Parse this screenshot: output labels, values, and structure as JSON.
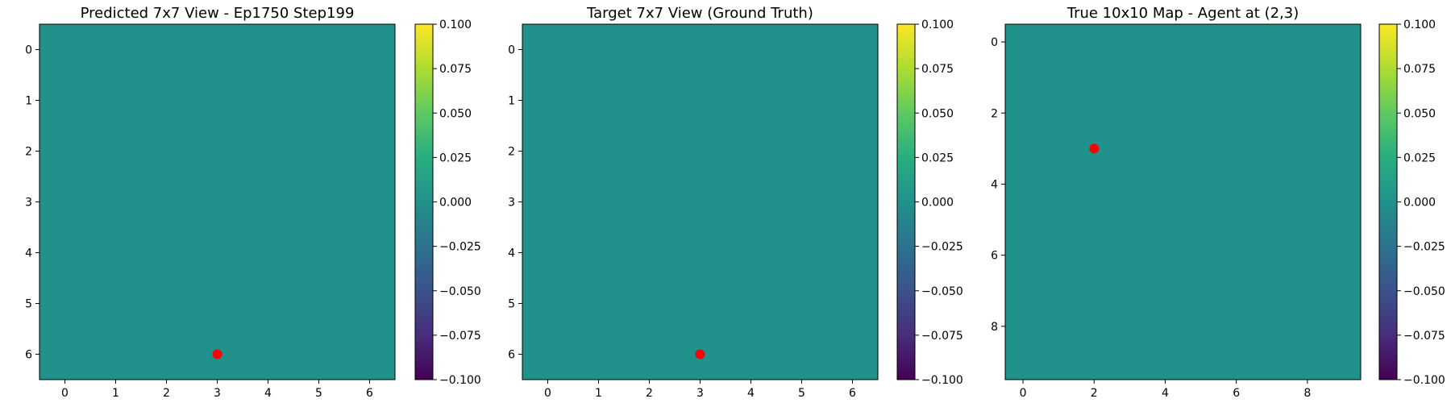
{
  "chart_data": [
    {
      "type": "heatmap",
      "title": "Predicted 7x7 View - Ep1750 Step199",
      "grid_size": 7,
      "xlim": [
        -0.5,
        6.5
      ],
      "ylim": [
        6.5,
        -0.5
      ],
      "xticks": [
        0,
        1,
        2,
        3,
        4,
        5,
        6
      ],
      "yticks": [
        0,
        1,
        2,
        3,
        4,
        5,
        6
      ],
      "cell_value": 0.0,
      "cell_color": "#21918c",
      "marker": {
        "x": 3,
        "y": 6,
        "color": "#ff0000"
      },
      "colorbar": {
        "min": -0.1,
        "max": 0.1,
        "ticks": [
          "0.100",
          "0.075",
          "0.050",
          "0.025",
          "0.000",
          "−0.025",
          "−0.050",
          "−0.075",
          "−0.100"
        ]
      },
      "colormap": "viridis"
    },
    {
      "type": "heatmap",
      "title": "Target 7x7 View (Ground Truth)",
      "grid_size": 7,
      "xlim": [
        -0.5,
        6.5
      ],
      "ylim": [
        6.5,
        -0.5
      ],
      "xticks": [
        0,
        1,
        2,
        3,
        4,
        5,
        6
      ],
      "yticks": [
        0,
        1,
        2,
        3,
        4,
        5,
        6
      ],
      "cell_value": 0.0,
      "cell_color": "#21918c",
      "marker": {
        "x": 3,
        "y": 6,
        "color": "#ff0000"
      },
      "colorbar": {
        "min": -0.1,
        "max": 0.1,
        "ticks": [
          "0.100",
          "0.075",
          "0.050",
          "0.025",
          "0.000",
          "−0.025",
          "−0.050",
          "−0.075",
          "−0.100"
        ]
      },
      "colormap": "viridis"
    },
    {
      "type": "heatmap",
      "title": "True 10x10 Map - Agent at (2,3)",
      "grid_size": 10,
      "xlim": [
        -0.5,
        9.5
      ],
      "ylim": [
        9.5,
        -0.5
      ],
      "xticks": [
        0,
        2,
        4,
        6,
        8
      ],
      "yticks": [
        0,
        2,
        4,
        6,
        8
      ],
      "cell_value": 0.0,
      "cell_color": "#21918c",
      "marker": {
        "x": 2,
        "y": 3,
        "color": "#ff0000"
      },
      "colorbar": {
        "min": -0.1,
        "max": 0.1,
        "ticks": [
          "0.100",
          "0.075",
          "0.050",
          "0.025",
          "0.000",
          "−0.025",
          "−0.050",
          "−0.075",
          "−0.100"
        ]
      },
      "colormap": "viridis"
    }
  ]
}
